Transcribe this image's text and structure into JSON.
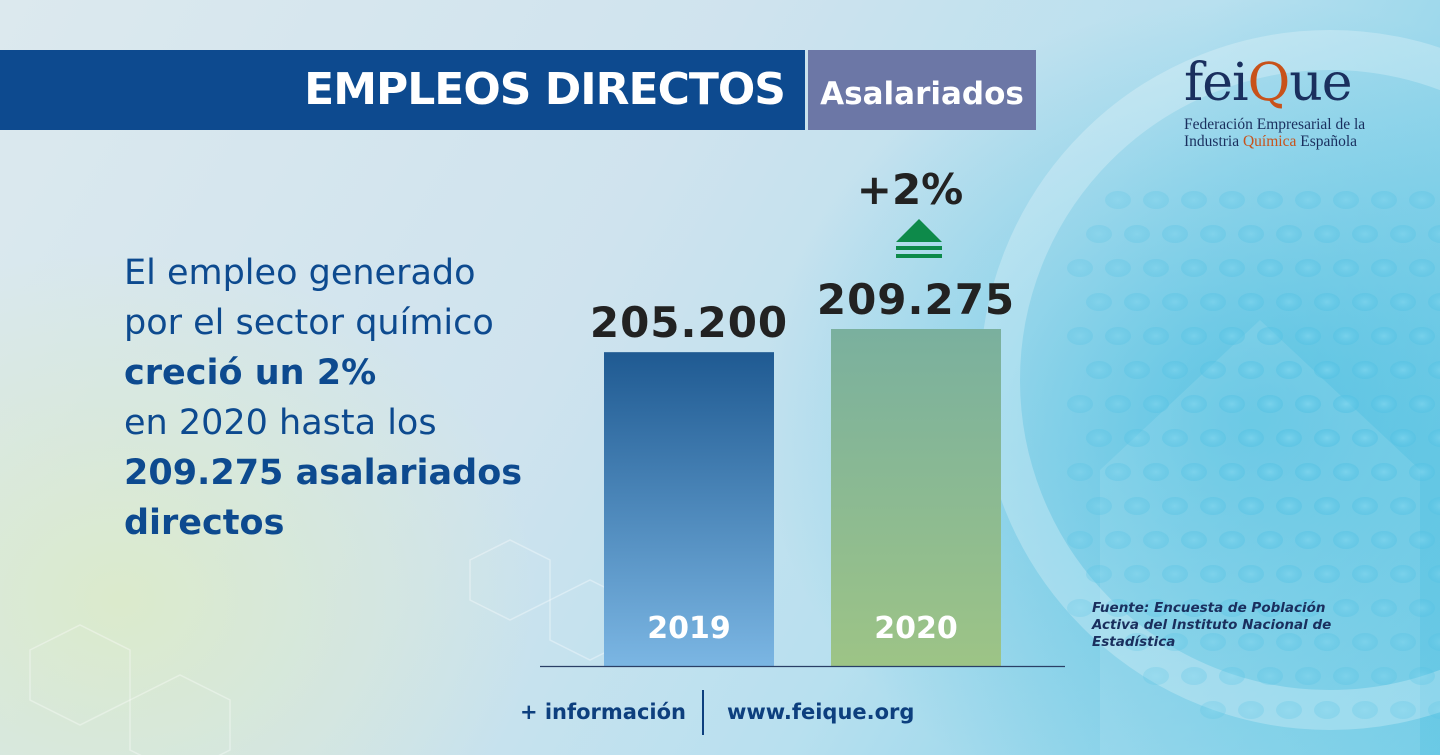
{
  "header": {
    "title": "EMPLEOS DIRECTOS",
    "tag": "Asalariados"
  },
  "logo": {
    "word_start": "fei",
    "word_q": "Q",
    "word_end": "ue",
    "line1": "Federación Empresarial de la",
    "line2_a": "Industria ",
    "line2_b": "Química",
    "line2_c": " Española"
  },
  "lead": {
    "line1": "El empleo generado",
    "line2": "por el sector químico",
    "line3": "creció un 2%",
    "line4": "en 2020 hasta los",
    "line5": "209.275 asalariados",
    "line6": "directos"
  },
  "chart_data": {
    "type": "bar",
    "categories": [
      "2019",
      "2020"
    ],
    "values": [
      205200,
      209275
    ],
    "value_labels": [
      "205.200",
      "209.275"
    ],
    "change_label": "+2%",
    "colors": [
      "#2a6aa8",
      "#8cba8c"
    ],
    "title": "",
    "xlabel": "",
    "ylabel": ""
  },
  "source": {
    "line1": "Fuente: Encuesta de Población",
    "line2": "Activa del Instituto Nacional de",
    "line3": "Estadística"
  },
  "footer": {
    "more": "+ información",
    "url": "www.feique.org"
  },
  "colors": {
    "primary": "#0d4a8f",
    "tag": "#6c77a6",
    "increase": "#0d8a4a"
  }
}
